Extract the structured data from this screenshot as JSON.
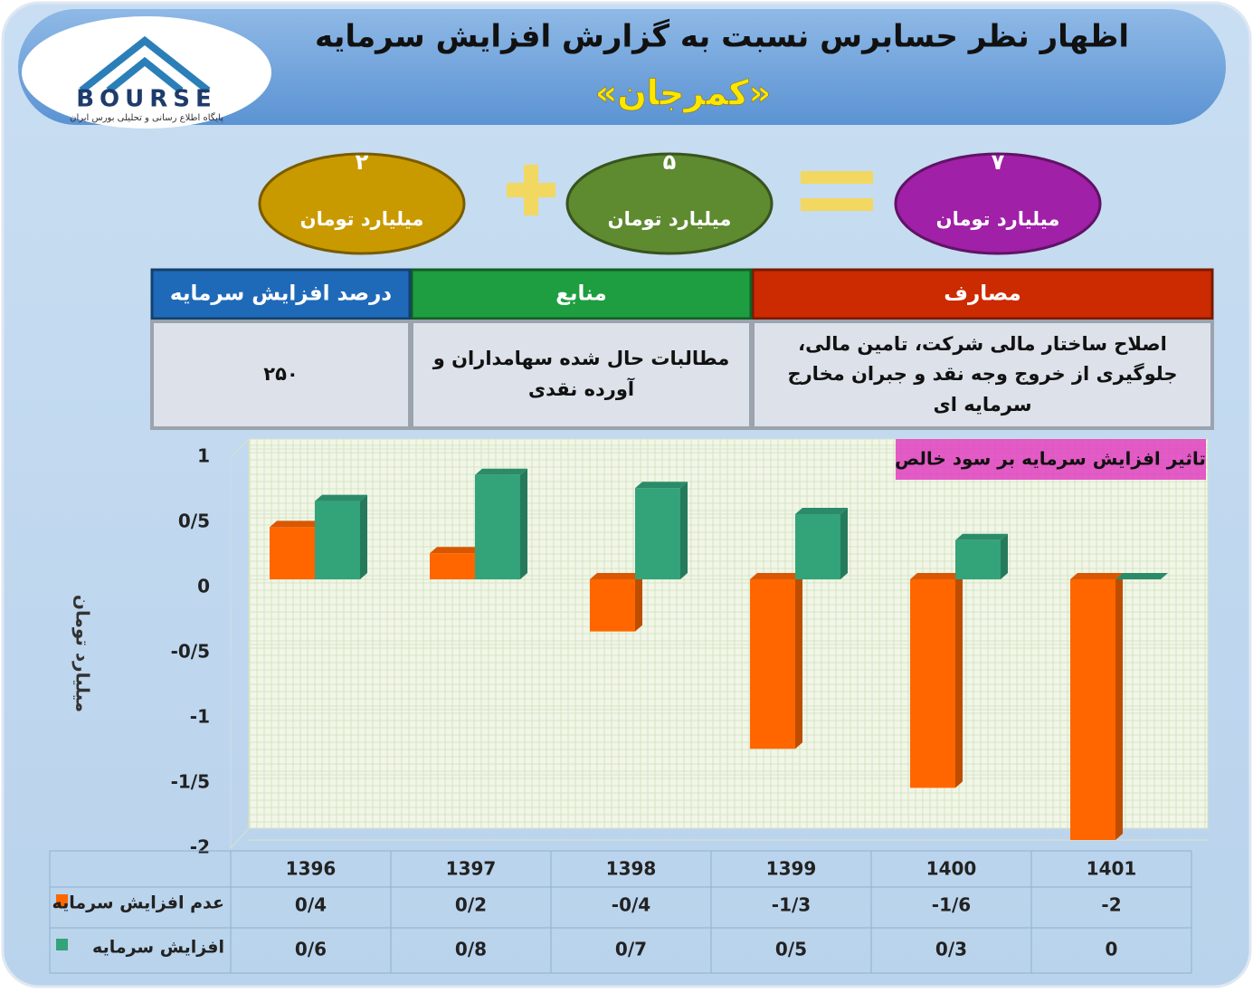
{
  "header": {
    "title": "اظهار نظر حسابرس نسبت به گزارش افزایش سرمایه",
    "subtitle": "«کمرجان»",
    "logo": "BOURSE",
    "logo_tagline": "پایگاه اطلاع رسانی و تحلیلی بورس ایران"
  },
  "ovals": [
    {
      "number": "۷",
      "unit": "میلیارد تومان",
      "color": "#a020a8"
    },
    {
      "number": "۵",
      "unit": "میلیارد تومان",
      "color": "#5e8a30"
    },
    {
      "number": "۲",
      "unit": "میلیارد تومان",
      "color": "#c99a00"
    }
  ],
  "table": {
    "headers": [
      "مصارف",
      "منابع",
      "درصد افزایش سرمایه"
    ],
    "cells": [
      "اصلاح ساختار مالی شرکت، تامین مالی، جلوگیری از خروج وجه نقد و جبران مخارج سرمایه ای",
      "مطالبات حال شده سهامداران و آورده نقدی",
      "۲۵۰"
    ]
  },
  "chart_data": {
    "type": "bar",
    "title": "تاثیر افزایش سرمایه بر سود خالص",
    "y_label": "میلیارد تومان",
    "categories": [
      "1396",
      "1397",
      "1398",
      "1399",
      "1400",
      "1401"
    ],
    "series": [
      {
        "name": "عدم افزایش سرمایه",
        "color": "#ff6600",
        "values": [
          0.4,
          0.2,
          -0.4,
          -1.3,
          -1.6,
          -2
        ],
        "value_labels": [
          "0/4",
          "0/2",
          "-0/4",
          "-1/3",
          "-1/6",
          "-2"
        ]
      },
      {
        "name": "افزایش سرمایه",
        "color": "#33a37a",
        "values": [
          0.6,
          0.8,
          0.7,
          0.5,
          0.3,
          0
        ],
        "value_labels": [
          "0/6",
          "0/8",
          "0/7",
          "0/5",
          "0/3",
          "0"
        ]
      }
    ],
    "ylim": [
      -2,
      1
    ],
    "yticks": [
      -2,
      {
        "value": -1.5,
        "label": "-1/5"
      },
      -1,
      {
        "value": -0.5,
        "label": "-0/5"
      },
      0,
      {
        "value": 0.5,
        "label": "0/5"
      },
      1
    ],
    "grid": true
  }
}
